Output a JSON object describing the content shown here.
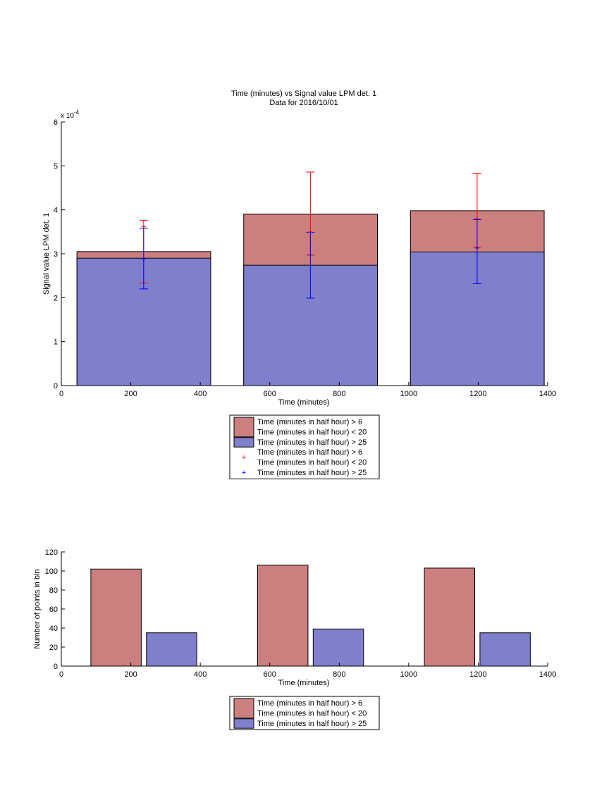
{
  "colors": {
    "red_fill": "#cc7f7f",
    "blue_fill": "#7f7fcc",
    "red_err": "#ff0000",
    "blue_err": "#0000ff",
    "axis": "#000000"
  },
  "chart_data": [
    {
      "type": "bar",
      "title": "Time (minutes) vs Signal value LPM det. 1",
      "subtitle": "Data for 2016/10/01",
      "xlabel": "Time (minutes)",
      "ylabel": "Signal value LPM det. 1",
      "exponent_label": "x 10",
      "exponent_power": "-4",
      "xlim": [
        0,
        1400
      ],
      "ylim": [
        0,
        6
      ],
      "x_ticks": [
        "0",
        "200",
        "400",
        "600",
        "800",
        "1000",
        "1200",
        "1400"
      ],
      "y_ticks": [
        "0",
        "1",
        "2",
        "3",
        "4",
        "5",
        "6"
      ],
      "bars": [
        {
          "x0": 45,
          "x1": 430,
          "red": 3.05,
          "blue": 2.9
        },
        {
          "x0": 525,
          "x1": 910,
          "red": 3.9,
          "blue": 2.74
        },
        {
          "x0": 1005,
          "x1": 1390,
          "red": 3.98,
          "blue": 3.04
        }
      ],
      "error_bars": [
        {
          "series": "red",
          "x": 237,
          "low": 2.33,
          "high": 3.76,
          "center": 3.62
        },
        {
          "series": "blue",
          "x": 237,
          "low": 2.2,
          "high": 3.58,
          "center": 2.88
        },
        {
          "series": "red",
          "x": 717,
          "low": 2.97,
          "high": 4.86,
          "center": 3.5
        },
        {
          "series": "blue",
          "x": 717,
          "low": 1.99,
          "high": 3.49,
          "center": 2.97
        },
        {
          "series": "red",
          "x": 1197,
          "low": 3.15,
          "high": 4.82,
          "center": 3.8
        },
        {
          "series": "blue",
          "x": 1197,
          "low": 2.32,
          "high": 3.78,
          "center": 3.13
        }
      ],
      "legend": [
        {
          "kind": "patch",
          "color": "red",
          "line1": "Time (minutes in half hour) > 6",
          "line2": "Time (minutes in half hour) < 20"
        },
        {
          "kind": "patch",
          "color": "blue",
          "line1": "Time (minutes in half hour) > 25"
        },
        {
          "kind": "plus",
          "color": "red",
          "line1": "Time (minutes in half hour) > 6",
          "line2": "Time (minutes in half hour) < 20"
        },
        {
          "kind": "plus",
          "color": "blue",
          "line1": "Time (minutes in half hour) > 25"
        }
      ],
      "legend_placement": "below"
    },
    {
      "type": "bar",
      "xlabel": "Time (minutes)",
      "ylabel": "Number of points in bin",
      "xlim": [
        0,
        1400
      ],
      "ylim": [
        0,
        120
      ],
      "x_ticks": [
        "0",
        "200",
        "400",
        "600",
        "800",
        "1000",
        "1200",
        "1400"
      ],
      "y_ticks": [
        "0",
        "20",
        "40",
        "60",
        "80",
        "100",
        "120"
      ],
      "bars": [
        {
          "series": "red",
          "x0": 85,
          "x1": 230,
          "value": 102
        },
        {
          "series": "blue",
          "x0": 245,
          "x1": 390,
          "value": 35
        },
        {
          "series": "red",
          "x0": 565,
          "x1": 710,
          "value": 106
        },
        {
          "series": "blue",
          "x0": 725,
          "x1": 870,
          "value": 39
        },
        {
          "series": "red",
          "x0": 1045,
          "x1": 1190,
          "value": 103
        },
        {
          "series": "blue",
          "x0": 1205,
          "x1": 1350,
          "value": 35
        }
      ],
      "legend": [
        {
          "kind": "patch",
          "color": "red",
          "line1": "Time (minutes in half hour) > 6",
          "line2": "Time (minutes in half hour) < 20"
        },
        {
          "kind": "patch",
          "color": "blue",
          "line1": "Time (minutes in half hour) > 25"
        }
      ],
      "legend_placement": "below"
    }
  ]
}
